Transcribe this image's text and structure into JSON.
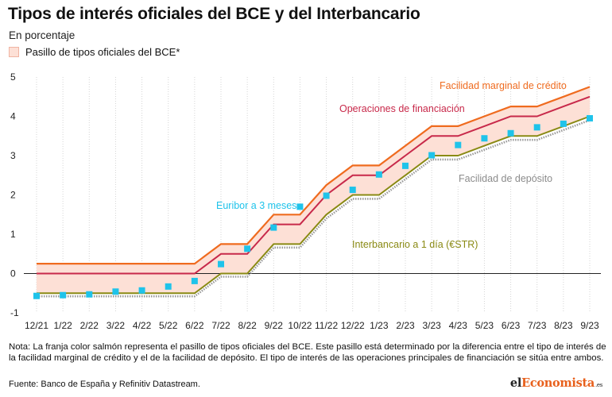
{
  "header": {
    "title": "Tipos de interés oficiales del BCE y del Interbancario",
    "subtitle": "En porcentaje",
    "legend_label": "Pasillo de tipos oficiales del BCE*"
  },
  "footer": {
    "note": "Nota: La franja color salmón representa el pasillo de tipos oficiales del BCE. Este pasillo está determinado por la diferencia entre el tipo de interés de la facilidad marginal de crédito y el de la facilidad de depósito. El tipo de interés de las operaciones principales de financiación se sitúa entre ambos.",
    "source": "Fuente: Banco de España y Refinitiv Datastream.",
    "logo_prefix": "el",
    "logo_accent": "Economista",
    "logo_suffix": ".es"
  },
  "chart_data": {
    "type": "line",
    "ylim": [
      -1,
      5
    ],
    "yticks": [
      -1,
      0,
      1,
      2,
      3,
      4,
      5
    ],
    "categories": [
      "12/21",
      "1/22",
      "2/22",
      "3/22",
      "4/22",
      "5/22",
      "6/22",
      "7/22",
      "8/22",
      "9/22",
      "10/22",
      "11/22",
      "12/22",
      "1/23",
      "2/23",
      "3/23",
      "4/23",
      "5/23",
      "6/23",
      "7/23",
      "8/23",
      "9/23"
    ],
    "grid": "vertical",
    "colors": {
      "marginal": "#ef6b1f",
      "refinancing": "#c8294a",
      "deposit": "#8a8a14",
      "estr_shadow": "#9a9a9a",
      "euribor": "#1fc3ea",
      "corridor": "#fde0d6",
      "zero_line": "#222222",
      "grid": "#d4d4d4"
    },
    "series": [
      {
        "key": "marginal",
        "name": "Facilidad marginal de crédito",
        "steps": [
          [
            "12/21",
            0.25
          ],
          [
            "7/22",
            0.75
          ],
          [
            "9/22",
            1.5
          ],
          [
            "11/22",
            2.25
          ],
          [
            "12/22",
            2.75
          ],
          [
            "2/23",
            3.25
          ],
          [
            "3/23",
            3.75
          ],
          [
            "5/23",
            4.0
          ],
          [
            "6/23",
            4.25
          ],
          [
            "8/23",
            4.5
          ],
          [
            "9/23",
            4.75
          ]
        ]
      },
      {
        "key": "refinancing",
        "name": "Operaciones de financiación",
        "steps": [
          [
            "12/21",
            0.0
          ],
          [
            "7/22",
            0.5
          ],
          [
            "9/22",
            1.25
          ],
          [
            "11/22",
            2.0
          ],
          [
            "12/22",
            2.5
          ],
          [
            "2/23",
            3.0
          ],
          [
            "3/23",
            3.5
          ],
          [
            "5/23",
            3.75
          ],
          [
            "6/23",
            4.0
          ],
          [
            "8/23",
            4.25
          ],
          [
            "9/23",
            4.5
          ]
        ]
      },
      {
        "key": "deposit",
        "name": "Facilidad de depósito",
        "steps": [
          [
            "12/21",
            -0.5
          ],
          [
            "7/22",
            0.0
          ],
          [
            "9/22",
            0.75
          ],
          [
            "11/22",
            1.5
          ],
          [
            "12/22",
            2.0
          ],
          [
            "2/23",
            2.5
          ],
          [
            "3/23",
            3.0
          ],
          [
            "5/23",
            3.25
          ],
          [
            "6/23",
            3.5
          ],
          [
            "8/23",
            3.75
          ],
          [
            "9/23",
            4.0
          ]
        ]
      },
      {
        "key": "estr",
        "name": "Interbancario a 1 día (€STR)",
        "steps": [
          [
            "12/21",
            -0.58
          ],
          [
            "7/22",
            -0.08
          ],
          [
            "9/22",
            0.66
          ],
          [
            "11/22",
            1.4
          ],
          [
            "12/22",
            1.9
          ],
          [
            "2/23",
            2.4
          ],
          [
            "3/23",
            2.9
          ],
          [
            "5/23",
            3.15
          ],
          [
            "6/23",
            3.4
          ],
          [
            "8/23",
            3.65
          ],
          [
            "9/23",
            3.9
          ]
        ]
      },
      {
        "key": "euribor",
        "name": "Euribor a 3 meses",
        "points": [
          [
            "12/21",
            -0.57
          ],
          [
            "1/22",
            -0.55
          ],
          [
            "2/22",
            -0.53
          ],
          [
            "3/22",
            -0.46
          ],
          [
            "4/22",
            -0.43
          ],
          [
            "5/22",
            -0.33
          ],
          [
            "6/22",
            -0.19
          ],
          [
            "7/22",
            0.24
          ],
          [
            "8/22",
            0.63
          ],
          [
            "9/22",
            1.17
          ],
          [
            "10/22",
            1.7
          ],
          [
            "11/22",
            1.98
          ],
          [
            "12/22",
            2.13
          ],
          [
            "1/23",
            2.52
          ],
          [
            "2/23",
            2.74
          ],
          [
            "3/23",
            3.01
          ],
          [
            "4/23",
            3.27
          ],
          [
            "5/23",
            3.44
          ],
          [
            "6/23",
            3.57
          ],
          [
            "7/23",
            3.72
          ],
          [
            "8/23",
            3.81
          ],
          [
            "9/23",
            3.95
          ]
        ]
      }
    ],
    "annotations": [
      {
        "series": "marginal",
        "text": "Facilidad marginal de crédito"
      },
      {
        "series": "refinancing",
        "text": "Operaciones de financiación"
      },
      {
        "series": "deposit",
        "text": "Facilidad de depósito"
      },
      {
        "series": "euribor",
        "text": "Euribor a 3 meses"
      },
      {
        "series": "estr",
        "text": "Interbancario a 1 día (€STR)"
      }
    ]
  }
}
